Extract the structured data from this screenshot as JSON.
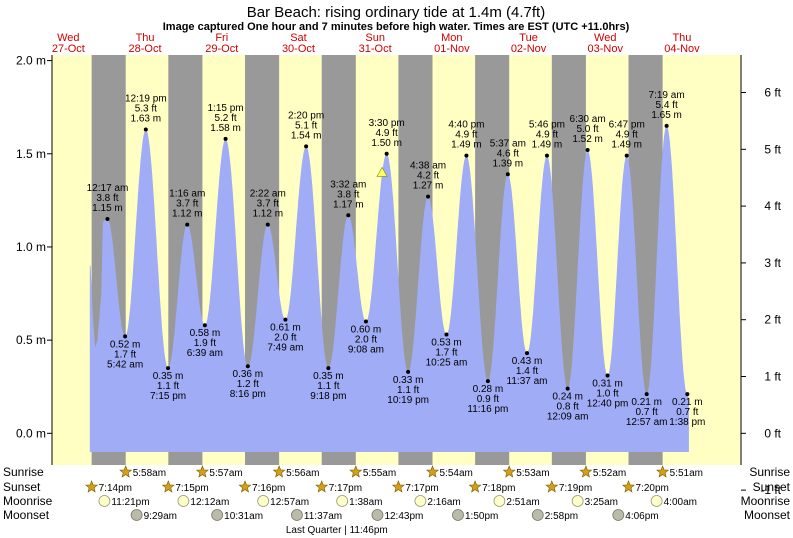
{
  "header": {
    "title": "Bar Beach: rising  ordinary tide at 1.4m (4.7ft)",
    "subtitle": "Image captured One hour and 7 minutes before high water. Times are EST (UTC +11.0hrs)"
  },
  "days": [
    {
      "name": "Wed",
      "date": "27-Oct"
    },
    {
      "name": "Thu",
      "date": "28-Oct"
    },
    {
      "name": "Fri",
      "date": "29-Oct"
    },
    {
      "name": "Sat",
      "date": "30-Oct"
    },
    {
      "name": "Sun",
      "date": "31-Oct"
    },
    {
      "name": "Mon",
      "date": "01-Nov"
    },
    {
      "name": "Tue",
      "date": "02-Nov"
    },
    {
      "name": "Wed",
      "date": "03-Nov"
    },
    {
      "name": "Thu",
      "date": "04-Nov"
    }
  ],
  "rows": {
    "sunrise_label": "Sunrise",
    "sunset_label": "Sunset",
    "moonrise_label": "Moonrise",
    "moonset_label": "Moonset",
    "sunrise": [
      "5:58am",
      "5:57am",
      "5:56am",
      "5:55am",
      "5:54am",
      "5:53am",
      "5:52am",
      "5:51am"
    ],
    "sunset": [
      "7:14pm",
      "7:15pm",
      "7:16pm",
      "7:17pm",
      "7:17pm",
      "7:18pm",
      "7:19pm",
      "7:20pm"
    ],
    "moonrise": [
      "11:21pm",
      "12:12am",
      "12:57am",
      "1:38am",
      "2:16am",
      "2:51am",
      "3:25am",
      "4:00am"
    ],
    "moonset": [
      "9:29am",
      "10:31am",
      "11:37am",
      "12:43pm",
      "1:50pm",
      "2:58pm",
      "4:06pm"
    ],
    "moon_phase": "Last Quarter | 11:46pm"
  },
  "colors": {
    "day_bg": "#ffffc4",
    "night_bg": "#999999",
    "water": "#a0acf5",
    "day_label": "#d00000",
    "current_marker": "#ffff66"
  },
  "chart_data": {
    "type": "area",
    "title": "Bar Beach: rising  ordinary tide at 1.4m (4.7ft)",
    "y_left": {
      "unit": "m",
      "ticks": [
        "2.0 m",
        "1.5 m",
        "1.0 m",
        "0.5 m",
        "0.0 m"
      ],
      "range": [
        -0.17,
        2.03
      ]
    },
    "y_right": {
      "unit": "ft",
      "ticks": [
        "6 ft",
        "5 ft",
        "4 ft",
        "3 ft",
        "2 ft",
        "1 ft",
        "0 ft",
        "-1 ft"
      ]
    },
    "current": {
      "height_m": 1.4,
      "height_ft": 4.7
    },
    "tides": [
      {
        "type": "high",
        "time": "12:17 am",
        "ft": "3.8 ft",
        "m": "1.15 m",
        "value": 1.15,
        "day": 1.01
      },
      {
        "type": "low",
        "time": "5:42 am",
        "ft": "1.7 ft",
        "m": "0.52 m",
        "value": 0.52,
        "day": 1.24
      },
      {
        "type": "high",
        "time": "12:19 pm",
        "ft": "5.3 ft",
        "m": "1.63 m",
        "value": 1.63,
        "day": 1.51
      },
      {
        "type": "low",
        "time": "7:15 pm",
        "ft": "1.1 ft",
        "m": "0.35 m",
        "value": 0.35,
        "day": 1.8
      },
      {
        "type": "high",
        "time": "1:16 am",
        "ft": "3.7 ft",
        "m": "1.12 m",
        "value": 1.12,
        "day": 2.05
      },
      {
        "type": "low",
        "time": "6:39 am",
        "ft": "1.9 ft",
        "m": "0.58 m",
        "value": 0.58,
        "day": 2.28
      },
      {
        "type": "high",
        "time": "1:15 pm",
        "ft": "5.2 ft",
        "m": "1.58 m",
        "value": 1.58,
        "day": 2.55
      },
      {
        "type": "low",
        "time": "8:16 pm",
        "ft": "1.2 ft",
        "m": "0.36 m",
        "value": 0.36,
        "day": 2.84
      },
      {
        "type": "high",
        "time": "2:22 am",
        "ft": "3.7 ft",
        "m": "1.12 m",
        "value": 1.12,
        "day": 3.1
      },
      {
        "type": "low",
        "time": "7:49 am",
        "ft": "2.0 ft",
        "m": "0.61 m",
        "value": 0.61,
        "day": 3.33
      },
      {
        "type": "high",
        "time": "2:20 pm",
        "ft": "5.1 ft",
        "m": "1.54 m",
        "value": 1.54,
        "day": 3.6
      },
      {
        "type": "low",
        "time": "9:18 pm",
        "ft": "1.1 ft",
        "m": "0.35 m",
        "value": 0.35,
        "day": 3.89
      },
      {
        "type": "high",
        "time": "3:32 am",
        "ft": "3.8 ft",
        "m": "1.17 m",
        "value": 1.17,
        "day": 4.15
      },
      {
        "type": "low",
        "time": "9:08 am",
        "ft": "2.0 ft",
        "m": "0.60 m",
        "value": 0.6,
        "day": 4.38
      },
      {
        "type": "high",
        "time": "3:30 pm",
        "ft": "4.9 ft",
        "m": "1.50 m",
        "value": 1.5,
        "day": 4.65
      },
      {
        "type": "low",
        "time": "10:19 pm",
        "ft": "1.1 ft",
        "m": "0.33 m",
        "value": 0.33,
        "day": 4.93
      },
      {
        "type": "high",
        "time": "4:38 am",
        "ft": "4.2 ft",
        "m": "1.27 m",
        "value": 1.27,
        "day": 5.19
      },
      {
        "type": "low",
        "time": "10:25 am",
        "ft": "1.7 ft",
        "m": "0.53 m",
        "value": 0.53,
        "day": 5.43
      },
      {
        "type": "high",
        "time": "4:40 pm",
        "ft": "4.9 ft",
        "m": "1.49 m",
        "value": 1.49,
        "day": 5.69
      },
      {
        "type": "low",
        "time": "11:16 pm",
        "ft": "0.9 ft",
        "m": "0.28 m",
        "value": 0.28,
        "day": 5.97
      },
      {
        "type": "high",
        "time": "5:37 am",
        "ft": "4.6 ft",
        "m": "1.39 m",
        "value": 1.39,
        "day": 6.23
      },
      {
        "type": "low",
        "time": "11:37 am",
        "ft": "1.4 ft",
        "m": "0.43 m",
        "value": 0.43,
        "day": 6.48
      },
      {
        "type": "high",
        "time": "5:46 pm",
        "ft": "4.9 ft",
        "m": "1.49 m",
        "value": 1.49,
        "day": 6.74
      },
      {
        "type": "low",
        "time": "12:09 am",
        "ft": "0.8 ft",
        "m": "0.24 m",
        "value": 0.24,
        "day": 7.01
      },
      {
        "type": "high",
        "time": "6:30 am",
        "ft": "5.0 ft",
        "m": "1.52 m",
        "value": 1.52,
        "day": 7.27
      },
      {
        "type": "low",
        "time": "12:40 pm",
        "ft": "1.0 ft",
        "m": "0.31 m",
        "value": 0.31,
        "day": 7.53
      },
      {
        "type": "high",
        "time": "6:47 pm",
        "ft": "4.9 ft",
        "m": "1.49 m",
        "value": 1.49,
        "day": 7.78
      },
      {
        "type": "low",
        "time": "12:57 am",
        "ft": "0.7 ft",
        "m": "0.21 m",
        "value": 0.21,
        "day": 8.04
      },
      {
        "type": "high",
        "time": "7:19 am",
        "ft": "5.4 ft",
        "m": "1.65 m",
        "value": 1.65,
        "day": 8.3
      },
      {
        "type": "low",
        "time": "1:38 pm",
        "ft": "0.7 ft",
        "m": "0.21 m",
        "value": 0.21,
        "day": 8.57
      }
    ]
  }
}
